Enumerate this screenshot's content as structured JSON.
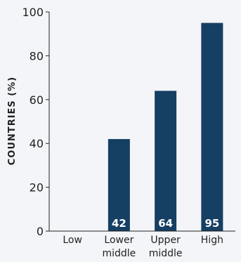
{
  "chart_data": {
    "type": "bar",
    "title": "",
    "xlabel": "",
    "ylabel": "COUNTRIES (%)",
    "categories": [
      [
        "Low"
      ],
      [
        "Lower",
        "middle"
      ],
      [
        "Upper",
        "middle"
      ],
      [
        "High"
      ]
    ],
    "values": [
      0,
      42,
      64,
      95
    ],
    "data_labels": [
      "",
      "42",
      "64",
      "95"
    ],
    "ylim": [
      0,
      100
    ],
    "yticks": [
      0,
      20,
      40,
      60,
      80,
      100
    ],
    "grid": false,
    "legend": "none",
    "bar_color": "#153f63",
    "label_color": "#ffffff",
    "axis_color": "#222222",
    "text_color": "#222222"
  }
}
